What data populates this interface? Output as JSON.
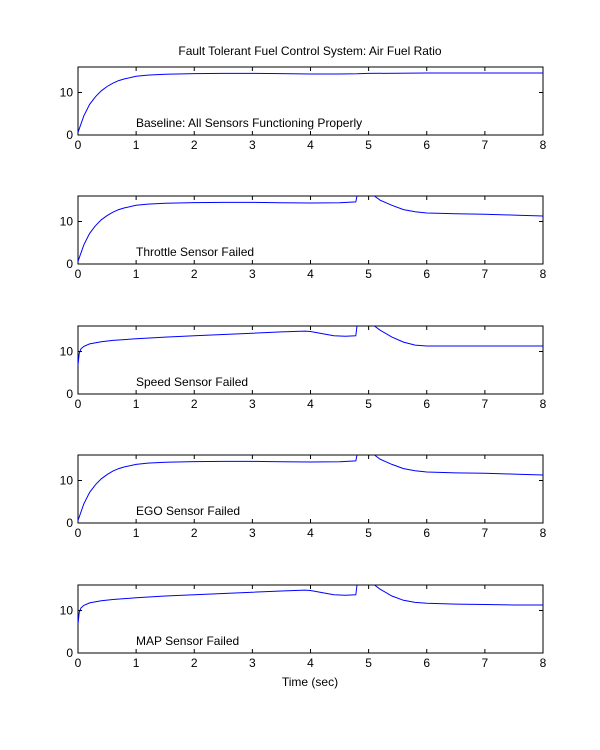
{
  "figure": {
    "title": "Fault Tolerant Fuel Control System: Air Fuel Ratio",
    "xlabel": "Time (sec)"
  },
  "chart_data": [
    {
      "type": "line",
      "annotation": "Baseline: All Sensors Functioning Properly",
      "xlim": [
        0,
        8
      ],
      "ylim": [
        0,
        16
      ],
      "xticks": [
        "0",
        "1",
        "2",
        "3",
        "4",
        "5",
        "6",
        "7",
        "8"
      ],
      "yticks": [
        "0",
        "10"
      ],
      "series": [
        {
          "values": [
            [
              0,
              0.6
            ],
            [
              0.1,
              4.5
            ],
            [
              0.2,
              7.2
            ],
            [
              0.3,
              9.0
            ],
            [
              0.4,
              10.4
            ],
            [
              0.5,
              11.4
            ],
            [
              0.6,
              12.2
            ],
            [
              0.7,
              12.8
            ],
            [
              0.8,
              13.2
            ],
            [
              1.0,
              13.8
            ],
            [
              1.2,
              14.1
            ],
            [
              1.5,
              14.3
            ],
            [
              2.0,
              14.45
            ],
            [
              2.5,
              14.5
            ],
            [
              3.0,
              14.5
            ],
            [
              3.5,
              14.45
            ],
            [
              4.0,
              14.35
            ],
            [
              4.5,
              14.35
            ],
            [
              4.8,
              14.4
            ],
            [
              5.0,
              14.5
            ],
            [
              5.5,
              14.55
            ],
            [
              6.0,
              14.6
            ],
            [
              6.5,
              14.6
            ],
            [
              7.0,
              14.6
            ],
            [
              7.5,
              14.6
            ],
            [
              8.0,
              14.6
            ]
          ]
        }
      ]
    },
    {
      "type": "line",
      "annotation": "Throttle Sensor Failed",
      "xlim": [
        0,
        8
      ],
      "ylim": [
        0,
        16
      ],
      "xticks": [
        "0",
        "1",
        "2",
        "3",
        "4",
        "5",
        "6",
        "7",
        "8"
      ],
      "yticks": [
        "0",
        "10"
      ],
      "series": [
        {
          "values": [
            [
              0,
              0.6
            ],
            [
              0.1,
              4.5
            ],
            [
              0.2,
              7.2
            ],
            [
              0.3,
              9.0
            ],
            [
              0.4,
              10.4
            ],
            [
              0.5,
              11.4
            ],
            [
              0.6,
              12.2
            ],
            [
              0.7,
              12.8
            ],
            [
              0.8,
              13.2
            ],
            [
              1.0,
              13.8
            ],
            [
              1.2,
              14.1
            ],
            [
              1.5,
              14.3
            ],
            [
              2.0,
              14.45
            ],
            [
              2.5,
              14.5
            ],
            [
              3.0,
              14.5
            ],
            [
              3.5,
              14.4
            ],
            [
              4.0,
              14.35
            ],
            [
              4.5,
              14.4
            ],
            [
              4.78,
              14.6
            ],
            [
              4.8,
              16
            ]
          ]
        },
        {
          "values": [
            [
              5.1,
              16
            ],
            [
              5.2,
              15.0
            ],
            [
              5.4,
              13.8
            ],
            [
              5.6,
              12.8
            ],
            [
              5.8,
              12.3
            ],
            [
              6.0,
              12.0
            ],
            [
              6.5,
              11.8
            ],
            [
              7.0,
              11.7
            ],
            [
              7.5,
              11.5
            ],
            [
              8.0,
              11.3
            ]
          ]
        }
      ]
    },
    {
      "type": "line",
      "annotation": "Speed Sensor Failed",
      "xlim": [
        0,
        8
      ],
      "ylim": [
        0,
        16
      ],
      "xticks": [
        "0",
        "1",
        "2",
        "3",
        "4",
        "5",
        "6",
        "7",
        "8"
      ],
      "yticks": [
        "0",
        "10"
      ],
      "series": [
        {
          "values": [
            [
              0,
              6.8
            ],
            [
              0.02,
              9.5
            ],
            [
              0.05,
              10.6
            ],
            [
              0.1,
              11.2
            ],
            [
              0.2,
              11.8
            ],
            [
              0.4,
              12.3
            ],
            [
              0.6,
              12.6
            ],
            [
              1.0,
              13.0
            ],
            [
              1.5,
              13.4
            ],
            [
              2.0,
              13.7
            ],
            [
              2.5,
              14.0
            ],
            [
              3.0,
              14.3
            ],
            [
              3.5,
              14.6
            ],
            [
              3.9,
              14.8
            ],
            [
              4.0,
              14.7
            ],
            [
              4.2,
              14.2
            ],
            [
              4.4,
              13.7
            ],
            [
              4.6,
              13.6
            ],
            [
              4.78,
              13.7
            ],
            [
              4.8,
              16
            ]
          ]
        },
        {
          "values": [
            [
              5.1,
              16
            ],
            [
              5.2,
              15.0
            ],
            [
              5.4,
              13.4
            ],
            [
              5.6,
              12.2
            ],
            [
              5.8,
              11.5
            ],
            [
              6.0,
              11.3
            ],
            [
              6.5,
              11.3
            ],
            [
              7.0,
              11.3
            ],
            [
              7.5,
              11.3
            ],
            [
              8.0,
              11.3
            ]
          ]
        }
      ]
    },
    {
      "type": "line",
      "annotation": "EGO Sensor Failed",
      "xlim": [
        0,
        8
      ],
      "ylim": [
        0,
        16
      ],
      "xticks": [
        "0",
        "1",
        "2",
        "3",
        "4",
        "5",
        "6",
        "7",
        "8"
      ],
      "yticks": [
        "0",
        "10"
      ],
      "series": [
        {
          "values": [
            [
              0,
              0.6
            ],
            [
              0.1,
              4.5
            ],
            [
              0.2,
              7.2
            ],
            [
              0.3,
              9.0
            ],
            [
              0.4,
              10.4
            ],
            [
              0.5,
              11.4
            ],
            [
              0.6,
              12.2
            ],
            [
              0.7,
              12.8
            ],
            [
              0.8,
              13.2
            ],
            [
              1.0,
              13.8
            ],
            [
              1.2,
              14.1
            ],
            [
              1.5,
              14.3
            ],
            [
              2.0,
              14.45
            ],
            [
              2.5,
              14.5
            ],
            [
              3.0,
              14.5
            ],
            [
              3.5,
              14.4
            ],
            [
              4.0,
              14.35
            ],
            [
              4.5,
              14.4
            ],
            [
              4.78,
              14.6
            ],
            [
              4.8,
              16
            ]
          ]
        },
        {
          "values": [
            [
              5.1,
              16
            ],
            [
              5.2,
              15.0
            ],
            [
              5.4,
              13.8
            ],
            [
              5.6,
              12.8
            ],
            [
              5.8,
              12.3
            ],
            [
              6.0,
              12.0
            ],
            [
              6.5,
              11.8
            ],
            [
              7.0,
              11.7
            ],
            [
              7.5,
              11.5
            ],
            [
              8.0,
              11.3
            ]
          ]
        }
      ]
    },
    {
      "type": "line",
      "annotation": "MAP Sensor Failed",
      "xlim": [
        0,
        8
      ],
      "ylim": [
        0,
        16
      ],
      "xticks": [
        "0",
        "1",
        "2",
        "3",
        "4",
        "5",
        "6",
        "7",
        "8"
      ],
      "yticks": [
        "0",
        "10"
      ],
      "series": [
        {
          "values": [
            [
              0,
              6.8
            ],
            [
              0.02,
              9.5
            ],
            [
              0.05,
              10.6
            ],
            [
              0.1,
              11.2
            ],
            [
              0.2,
              11.8
            ],
            [
              0.4,
              12.3
            ],
            [
              0.6,
              12.6
            ],
            [
              1.0,
              13.0
            ],
            [
              1.5,
              13.4
            ],
            [
              2.0,
              13.7
            ],
            [
              2.5,
              14.0
            ],
            [
              3.0,
              14.3
            ],
            [
              3.5,
              14.6
            ],
            [
              3.9,
              14.8
            ],
            [
              4.0,
              14.7
            ],
            [
              4.2,
              14.2
            ],
            [
              4.4,
              13.7
            ],
            [
              4.6,
              13.6
            ],
            [
              4.78,
              13.7
            ],
            [
              4.8,
              16
            ]
          ]
        },
        {
          "values": [
            [
              5.1,
              16
            ],
            [
              5.2,
              15.0
            ],
            [
              5.4,
              13.4
            ],
            [
              5.6,
              12.4
            ],
            [
              5.8,
              11.9
            ],
            [
              6.0,
              11.7
            ],
            [
              6.5,
              11.5
            ],
            [
              7.0,
              11.4
            ],
            [
              7.5,
              11.3
            ],
            [
              8.0,
              11.3
            ]
          ]
        }
      ]
    }
  ]
}
